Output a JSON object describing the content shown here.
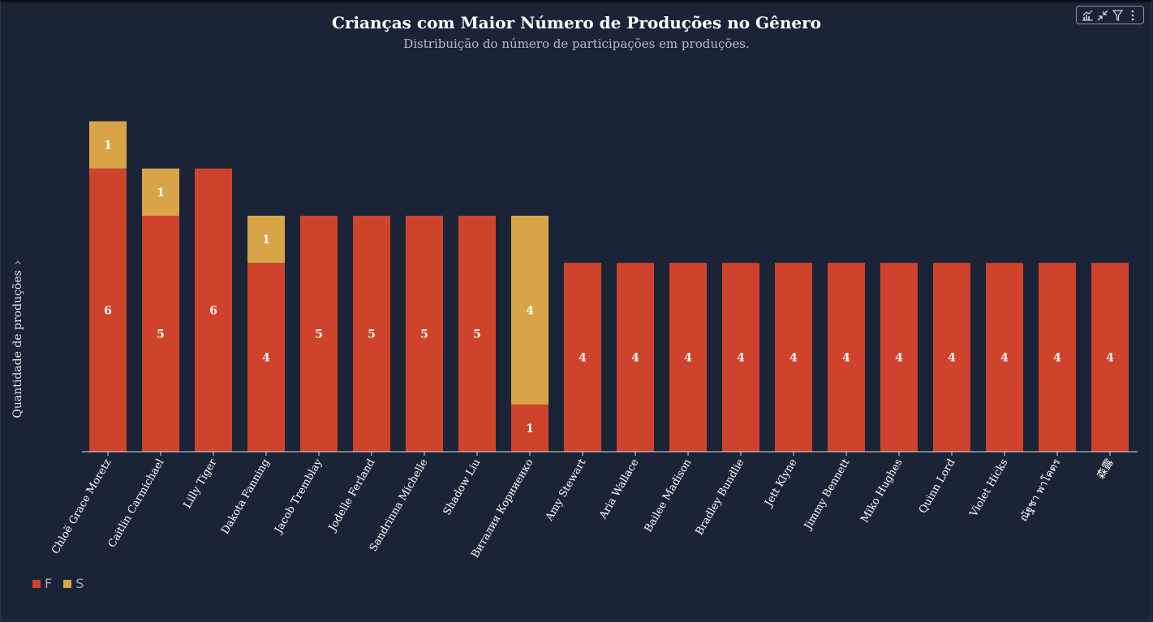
{
  "chart_data": {
    "type": "bar",
    "stacked": true,
    "title": "Crianças com Maior Número de Produções no Gênero",
    "subtitle": "Distribuição do número de participações em produções.",
    "ylabel": "Quantidade de produções",
    "ylabel_chevron": "›",
    "ylim": [
      0,
      7
    ],
    "grid": false,
    "legend_position": "bottom-left",
    "categories": [
      "Chloë Grace Moretz",
      "Caitlin Carmichael",
      "Lilly Tiger",
      "Dakota Fanning",
      "Jacob Tremblay",
      "Jodelle Ferland",
      "Sandrinna Michelle",
      "Shadow Liu",
      "Виталия Корниенко",
      "Amy Stewart",
      "Aria Wallace",
      "Bailee Madison",
      "Bradley Bundlie",
      "Jett Klyne",
      "Jimmy Bennett",
      "Miko Hughes",
      "Quinn Lord",
      "Violet Hicks",
      "ณัฐชา พาโคตร",
      "森露"
    ],
    "series": [
      {
        "name": "F",
        "color": "#cf432c",
        "values": [
          6,
          5,
          6,
          4,
          5,
          5,
          5,
          5,
          1,
          4,
          4,
          4,
          4,
          4,
          4,
          4,
          4,
          4,
          4,
          4
        ]
      },
      {
        "name": "S",
        "color": "#d9a447",
        "values": [
          1,
          1,
          0,
          1,
          0,
          0,
          0,
          0,
          4,
          0,
          0,
          0,
          0,
          0,
          0,
          0,
          0,
          0,
          0,
          0
        ]
      }
    ]
  },
  "toolbar": {
    "icons": [
      "chart-type-icon",
      "collapse-icon",
      "filter-icon",
      "more-icon"
    ]
  },
  "colors": {
    "background": "#1b2436",
    "axis": "#d8dbe0",
    "label_text": "#ffffff"
  }
}
